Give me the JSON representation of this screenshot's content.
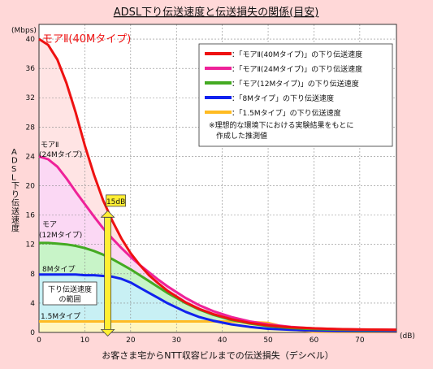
{
  "chart_data": {
    "type": "line",
    "title": "ADSL下り伝送速度と伝送損失の関係(目安)",
    "xlabel": "お客さま宅からNTT収容ビルまでの伝送損失（デシベル）",
    "ylabel": "ADSL下り伝送速度",
    "x_unit": "(dB)",
    "y_unit": "(Mbps)",
    "xlim": [
      0,
      78
    ],
    "ylim": [
      0,
      42
    ],
    "x_ticks": [
      0,
      10,
      20,
      30,
      40,
      50,
      60,
      70
    ],
    "y_ticks": [
      0,
      4,
      8,
      12,
      16,
      20,
      24,
      28,
      32,
      36,
      40
    ],
    "grid": true,
    "legend_position": "top-right",
    "series": [
      {
        "name": "：「モアⅡ(40Mタイプ)」の下り伝送速度",
        "color": "#ee1111",
        "fill": "#ffe4e4",
        "x": [
          0,
          2,
          4,
          6,
          8,
          10,
          12,
          14,
          16,
          18,
          20,
          22,
          24,
          26,
          28,
          30,
          32,
          35,
          38,
          42,
          46,
          50,
          55,
          60,
          65,
          70,
          78
        ],
        "y": [
          40,
          39.2,
          37.2,
          34,
          30,
          25.5,
          21.5,
          18,
          15.2,
          12.8,
          10.8,
          9.2,
          7.8,
          6.7,
          5.7,
          4.9,
          4.1,
          3.2,
          2.5,
          1.8,
          1.3,
          0.95,
          0.7,
          0.55,
          0.45,
          0.4,
          0.35
        ]
      },
      {
        "name": "：「モアⅡ(24Mタイプ)」の下り伝送速度",
        "color": "#ee2299",
        "fill": "#fbd8f4",
        "x": [
          0,
          2,
          4,
          6,
          8,
          10,
          12,
          14,
          16,
          18,
          20,
          22,
          24,
          26,
          28,
          30,
          32,
          35,
          38,
          42,
          46,
          50,
          55,
          60,
          65,
          70,
          78
        ],
        "y": [
          24,
          23.6,
          22.6,
          21,
          19.2,
          17.5,
          15.8,
          14.2,
          12.8,
          11.5,
          10.3,
          9.2,
          8.2,
          7.2,
          6.3,
          5.5,
          4.7,
          3.7,
          2.9,
          2.1,
          1.5,
          1.1,
          0.75,
          0.55,
          0.45,
          0.4,
          0.35
        ]
      },
      {
        "name": "：「モア(12Mタイプ)」の下り伝送速度",
        "color": "#44aa22",
        "fill": "#c8f4c8",
        "x": [
          0,
          2,
          4,
          6,
          8,
          10,
          12,
          14,
          16,
          18,
          20,
          22,
          24,
          26,
          28,
          30,
          32,
          35,
          38,
          42,
          46,
          50,
          55,
          60,
          65,
          70,
          78
        ],
        "y": [
          12.2,
          12.2,
          12.1,
          12,
          11.8,
          11.5,
          11.1,
          10.6,
          10,
          9.3,
          8.6,
          7.8,
          7,
          6.2,
          5.4,
          4.7,
          4,
          3.1,
          2.4,
          1.7,
          1.2,
          0.85,
          0.6,
          0.45,
          0.38,
          0.33,
          0.3
        ]
      },
      {
        "name": "：「8Mタイプ」の下り伝送速度",
        "color": "#1122ee",
        "fill": "#c8f0f4",
        "x": [
          0,
          2,
          4,
          6,
          8,
          10,
          12,
          14,
          16,
          18,
          20,
          22,
          24,
          26,
          28,
          30,
          32,
          35,
          38,
          42,
          46,
          50,
          55,
          60,
          65,
          70,
          78
        ],
        "y": [
          7.9,
          7.9,
          7.9,
          7.9,
          7.9,
          7.8,
          7.8,
          7.7,
          7.6,
          7.3,
          6.8,
          6.1,
          5.4,
          4.7,
          4,
          3.4,
          2.8,
          2.1,
          1.6,
          1.1,
          0.75,
          0.5,
          0.35,
          0.25,
          0.2,
          0.18,
          0.15
        ]
      },
      {
        "name": "：「1.5Mタイプ」の下り伝送速度",
        "color": "#ffbb22",
        "fill": "#fff6c0",
        "x": [
          0,
          10,
          20,
          30,
          40,
          45,
          50,
          52,
          55,
          60,
          70,
          78
        ],
        "y": [
          1.5,
          1.5,
          1.5,
          1.5,
          1.5,
          1.45,
          1.3,
          1.0,
          0.4,
          0.1,
          0.05,
          0.05
        ]
      }
    ],
    "curve_labels": [
      {
        "text": "モアⅡ(40Mタイプ)",
        "series": 0
      },
      {
        "text": "モアⅡ",
        "series": 1
      },
      {
        "text": "(24Mタイプ)",
        "series": 1
      },
      {
        "text": "モア",
        "series": 2
      },
      {
        "text": "(12Mタイプ)",
        "series": 2
      },
      {
        "text": "8Mタイプ",
        "series": 3
      },
      {
        "text": "1.5Mタイプ",
        "series": 4
      }
    ],
    "range_box": "下り伝送速度\nの範囲",
    "marker": {
      "label": "15dB",
      "x": 15
    },
    "note": "※理想的な環境下における実験結果をもとに\n作成した推測値"
  }
}
